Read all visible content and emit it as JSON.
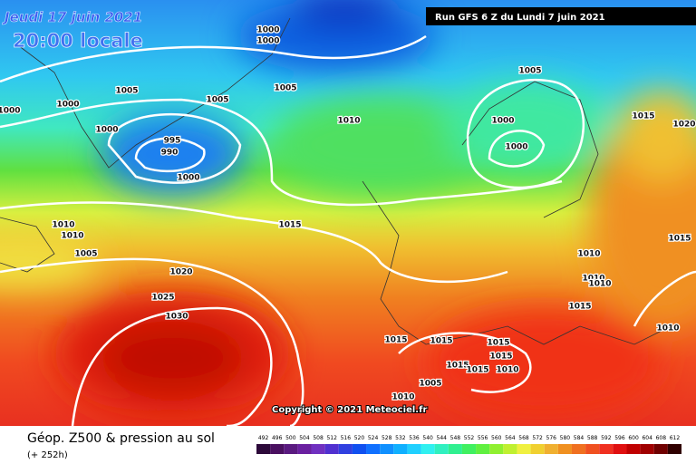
{
  "header": {
    "date": "Jeudi 17 juin 2021",
    "time": "20:00 locale",
    "run": "Run GFS 6 Z du Lundi 7 juin 2021"
  },
  "map": {
    "isobar_labels": [
      1000,
      1000,
      1005,
      1000,
      1000,
      1005,
      1005,
      1005,
      1010,
      1000,
      1000,
      995,
      990,
      1000,
      1000,
      1015,
      1020,
      1010,
      1010,
      1005,
      1015,
      1020,
      1025,
      1030,
      1010,
      1010,
      1010,
      1015,
      1015,
      1010,
      1015,
      1015,
      1015,
      1015,
      1015,
      1015,
      1010,
      1005,
      1010
    ],
    "copyright": "Copyright © 2021 Meteociel.fr"
  },
  "footer": {
    "title": "Géop. Z500 & pression au sol",
    "lead": "(+ 252h)"
  },
  "colorbar": {
    "ticks": [
      492,
      496,
      500,
      504,
      508,
      512,
      516,
      520,
      524,
      528,
      532,
      536,
      540,
      544,
      548,
      552,
      556,
      560,
      564,
      568,
      572,
      576,
      580,
      584,
      588,
      592,
      596,
      600,
      604,
      608,
      612
    ],
    "colors": [
      "#2d0a3a",
      "#4a1060",
      "#5a1a80",
      "#6a20a0",
      "#7030c0",
      "#5030d0",
      "#3040e0",
      "#1050f0",
      "#1070ff",
      "#1090ff",
      "#10b0ff",
      "#20d0ff",
      "#30f0f0",
      "#30f0c0",
      "#30f090",
      "#40f060",
      "#60f040",
      "#90f030",
      "#c0f030",
      "#f0f040",
      "#f0d030",
      "#f0b030",
      "#f09020",
      "#f07020",
      "#f05020",
      "#f03020",
      "#e01010",
      "#c00000",
      "#a00000",
      "#700000",
      "#300000"
    ]
  }
}
